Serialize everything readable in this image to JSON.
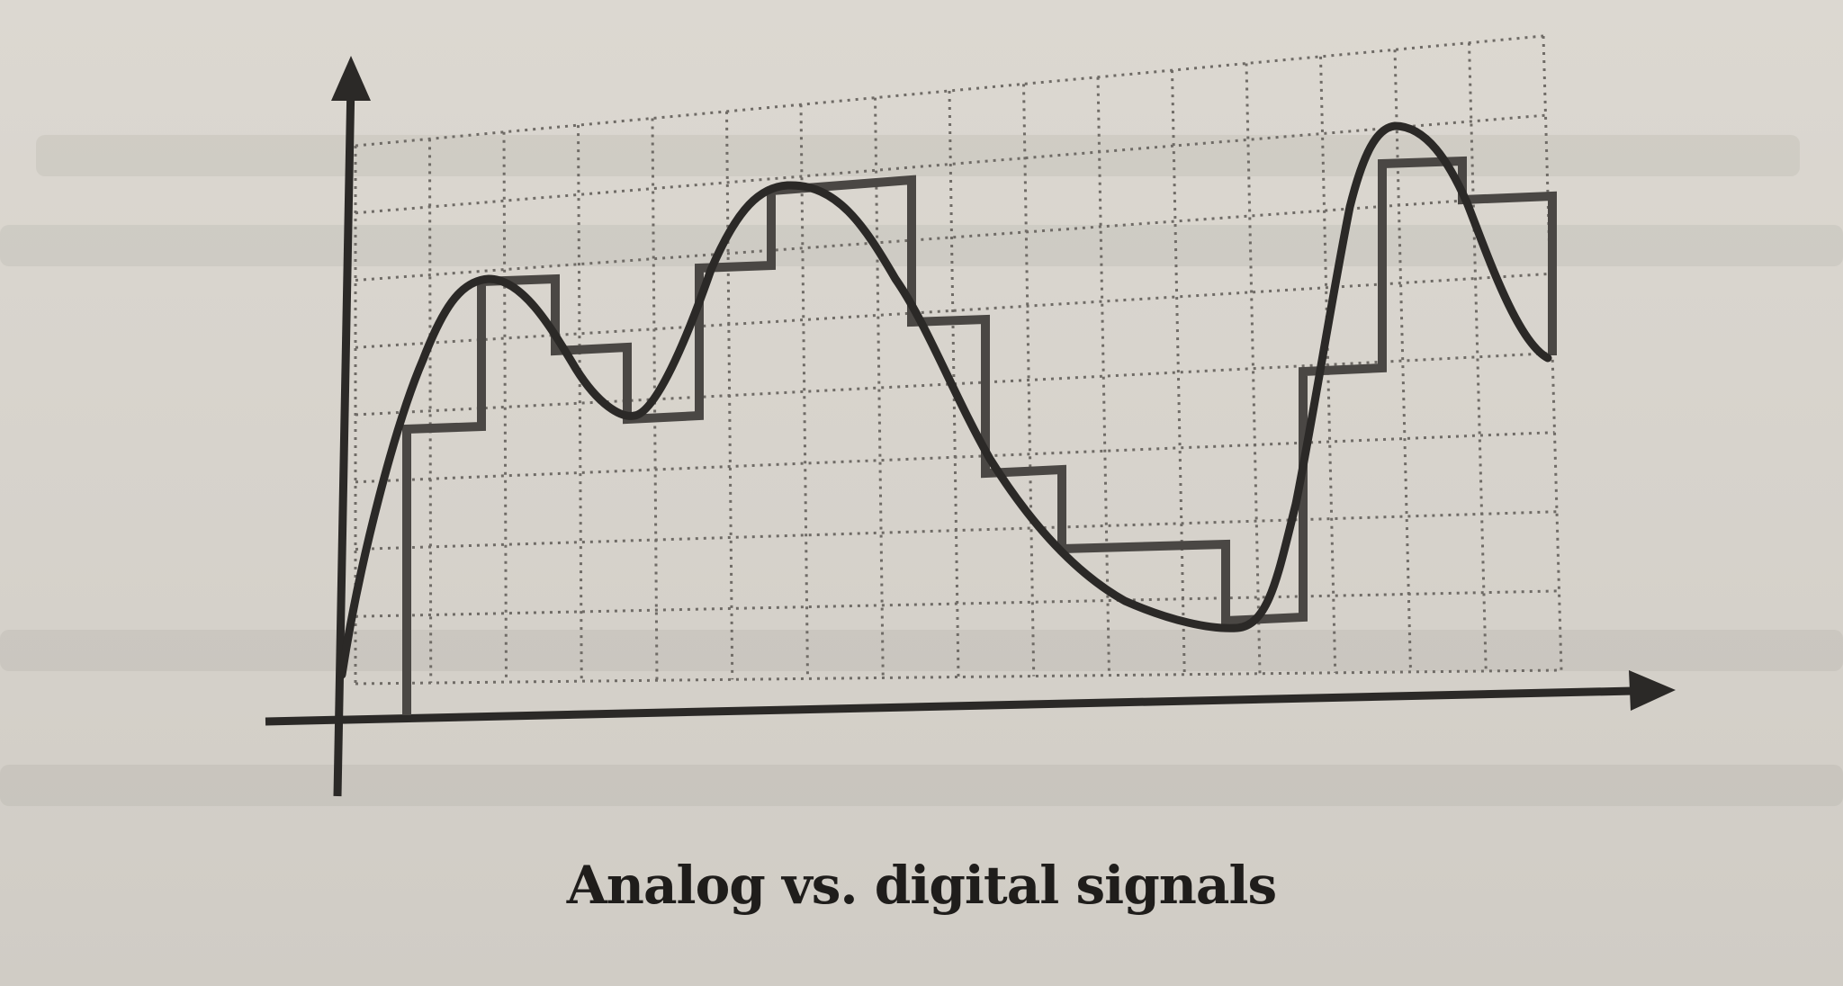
{
  "caption": "Analog vs. digital signals",
  "colors": {
    "paper": "#d8d4cd",
    "ink": "#2b2927",
    "grid": "#6f6b66"
  },
  "icons": {
    "y_axis_arrow": "arrow-up-icon",
    "x_axis_arrow": "arrow-right-icon"
  },
  "grid": {
    "columns": 16,
    "rows": 8
  }
}
